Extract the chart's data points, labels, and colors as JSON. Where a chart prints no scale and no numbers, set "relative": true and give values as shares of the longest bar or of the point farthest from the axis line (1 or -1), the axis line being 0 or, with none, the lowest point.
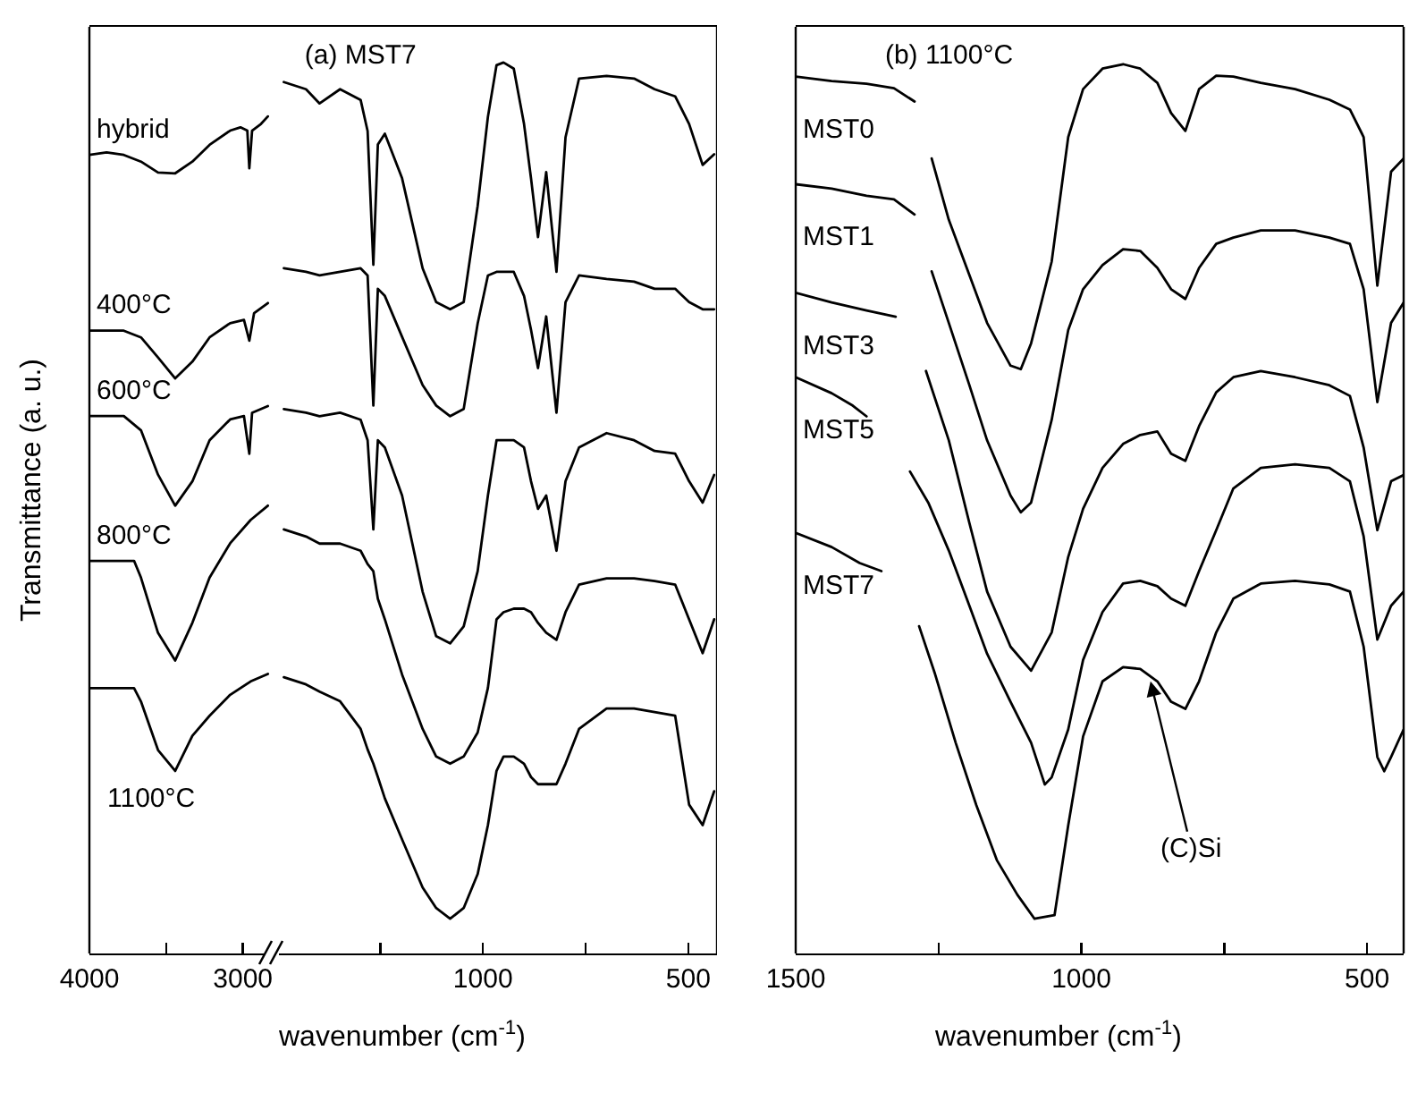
{
  "chart_data": [
    {
      "type": "line",
      "ylabel": "Transmittance (a. u.)",
      "relative": true,
      "xlim": [
        4000,
        2800
      ],
      "xticks": [
        4000,
        {
          "value": 3500,
          "label": null
        },
        3000
      ],
      "series": [
        {
          "name": "hybrid",
          "color": "#000000",
          "x": [
            4000,
            3888,
            3776,
            3664,
            3553,
            3441,
            3329,
            3217,
            3083,
            3016,
            2971,
            2958,
            2940,
            2882,
            2837
          ],
          "values": [
            0.954,
            0.957,
            0.954,
            0.946,
            0.933,
            0.932,
            0.946,
            0.966,
            0.983,
            0.987,
            0.983,
            0.938,
            0.983,
            0.991,
            1
          ]
        },
        {
          "name": "400°C",
          "color": "#000000",
          "x": [
            4000,
            3776,
            3664,
            3553,
            3441,
            3329,
            3217,
            3083,
            2993,
            2958,
            2927,
            2837
          ],
          "values": [
            0.744,
            0.744,
            0.736,
            0.712,
            0.687,
            0.707,
            0.736,
            0.753,
            0.757,
            0.732,
            0.765,
            0.777
          ]
        },
        {
          "name": "600°C",
          "color": "#000000",
          "x": [
            4000,
            3776,
            3664,
            3553,
            3441,
            3329,
            3217,
            3083,
            2993,
            2958,
            2940,
            2837
          ],
          "values": [
            0.642,
            0.642,
            0.625,
            0.572,
            0.535,
            0.564,
            0.613,
            0.638,
            0.642,
            0.597,
            0.646,
            0.654
          ]
        },
        {
          "name": "800°C",
          "color": "#000000",
          "x": [
            4000,
            3709,
            3664,
            3553,
            3441,
            3329,
            3217,
            3083,
            2949,
            2837
          ],
          "values": [
            0.469,
            0.469,
            0.449,
            0.383,
            0.35,
            0.395,
            0.449,
            0.49,
            0.518,
            0.535
          ]
        },
        {
          "name": "1100°C",
          "color": "#000000",
          "x": [
            4000,
            3709,
            3664,
            3553,
            3441,
            3329,
            3217,
            3083,
            2949,
            2837
          ],
          "values": [
            0.317,
            0.317,
            0.301,
            0.243,
            0.218,
            0.26,
            0.284,
            0.309,
            0.325,
            0.334
          ]
        }
      ]
    },
    {
      "type": "line",
      "title": "(a) MST7",
      "xlabel": "wavenumber (cm$^{-1}$)",
      "relative": true,
      "xlim": [
        1510,
        430
      ],
      "xticks": [
        {
          "value": 1250,
          "label": null
        },
        1000,
        {
          "value": 750,
          "label": null
        },
        500
      ],
      "x": [
        1485,
        1431,
        1398,
        1348,
        1298,
        1281,
        1267,
        1256,
        1239,
        1197,
        1147,
        1114,
        1080,
        1047,
        1013,
        988,
        967,
        950,
        925,
        900,
        883,
        866,
        846,
        821,
        799,
        766,
        699,
        632,
        582,
        532,
        498,
        465,
        437
      ],
      "series": [
        {
          "color": "#000000",
          "values": [
            0.978,
            0.97,
            0.954,
            0.97,
            0.958,
            0.923,
            0.773,
            0.908,
            0.92,
            0.87,
            0.769,
            0.731,
            0.723,
            0.731,
            0.839,
            0.939,
            0.997,
            1,
            0.993,
            0.931,
            0.87,
            0.804,
            0.877,
            0.765,
            0.916,
            0.982,
            0.985,
            0.982,
            0.97,
            0.962,
            0.931,
            0.885,
            0.897
          ]
        },
        {
          "color": "#000000",
          "values": [
            0.769,
            0.765,
            0.761,
            0.765,
            0.769,
            0.761,
            0.615,
            0.746,
            0.738,
            0.692,
            0.638,
            0.615,
            0.603,
            0.611,
            0.707,
            0.761,
            0.765,
            0.765,
            0.765,
            0.738,
            0.7,
            0.657,
            0.715,
            0.607,
            0.731,
            0.761,
            0.757,
            0.754,
            0.746,
            0.746,
            0.731,
            0.723,
            0.723
          ]
        },
        {
          "color": "#000000",
          "values": [
            0.611,
            0.607,
            0.603,
            0.607,
            0.599,
            0.576,
            0.476,
            0.576,
            0.568,
            0.514,
            0.406,
            0.356,
            0.348,
            0.367,
            0.429,
            0.514,
            0.576,
            0.576,
            0.576,
            0.568,
            0.53,
            0.499,
            0.514,
            0.452,
            0.53,
            0.568,
            0.584,
            0.576,
            0.564,
            0.561,
            0.53,
            0.506,
            0.537
          ]
        },
        {
          "color": "#000000",
          "values": [
            0.476,
            0.468,
            0.46,
            0.46,
            0.452,
            0.437,
            0.429,
            0.398,
            0.375,
            0.313,
            0.252,
            0.221,
            0.213,
            0.221,
            0.248,
            0.298,
            0.375,
            0.383,
            0.387,
            0.387,
            0.383,
            0.371,
            0.36,
            0.352,
            0.383,
            0.414,
            0.421,
            0.421,
            0.418,
            0.414,
            0.375,
            0.337,
            0.375
          ]
        },
        {
          "color": "#000000",
          "values": [
            0.31,
            0.302,
            0.294,
            0.283,
            0.252,
            0.229,
            0.213,
            0.198,
            0.174,
            0.128,
            0.074,
            0.051,
            0.039,
            0.051,
            0.089,
            0.144,
            0.205,
            0.221,
            0.221,
            0.213,
            0.198,
            0.19,
            0.19,
            0.19,
            0.213,
            0.252,
            0.275,
            0.275,
            0.271,
            0.267,
            0.167,
            0.144,
            0.182
          ]
        }
      ]
    },
    {
      "type": "line",
      "title": "(b) 1100°C",
      "xlabel": "wavenumber (cm$^{-1}$)",
      "relative": true,
      "xlim": [
        1500,
        436
      ],
      "xticks": [
        1500,
        {
          "value": 1250,
          "label": null
        },
        1000,
        {
          "value": 750,
          "label": null
        },
        500
      ],
      "annotations": [
        {
          "text": "(C)Si",
          "x": 879,
          "y": 0.306
        }
      ],
      "series": [
        {
          "name": "MST0",
          "color": "#000000",
          "x": [
            1500,
            1437,
            1376,
            1328,
            1292,
            1277,
            1262,
            1232,
            1196,
            1165,
            1124,
            1106,
            1088,
            1052,
            1023,
            997,
            963,
            927,
            897,
            867,
            843,
            818,
            794,
            764,
            734,
            686,
            626,
            566,
            530,
            506,
            482,
            458,
            436
          ],
          "values": [
            0.986,
            0.981,
            0.978,
            0.973,
            0.958,
            null,
            0.894,
            0.825,
            0.763,
            0.709,
            0.661,
            0.657,
            0.686,
            0.778,
            0.918,
            0.972,
            0.995,
            1,
            0.995,
            0.979,
            0.945,
            0.925,
            0.972,
            0.987,
            0.986,
            0.979,
            0.972,
            0.96,
            0.949,
            0.918,
            0.751,
            0.879,
            0.894
          ]
        },
        {
          "name": "MST1",
          "color": "#000000",
          "x": [
            1500,
            1437,
            1376,
            1328,
            1292,
            1277,
            1262,
            1232,
            1196,
            1165,
            1124,
            1106,
            1088,
            1052,
            1023,
            997,
            963,
            927,
            897,
            867,
            843,
            818,
            794,
            764,
            734,
            686,
            626,
            566,
            530,
            506,
            482,
            458,
            436
          ],
          "values": [
            0.865,
            0.86,
            0.852,
            0.848,
            0.831,
            null,
            0.767,
            0.709,
            0.639,
            0.577,
            0.515,
            0.496,
            0.507,
            0.6,
            0.701,
            0.747,
            0.774,
            0.792,
            0.79,
            0.771,
            0.747,
            0.736,
            0.771,
            0.798,
            0.805,
            0.813,
            0.813,
            0.805,
            0.798,
            0.747,
            0.62,
            0.709,
            0.732
          ]
        },
        {
          "name": "MST3",
          "color": "#000000",
          "x": [
            1500,
            1437,
            1376,
            1325,
            1300,
            1272,
            1232,
            1196,
            1165,
            1124,
            1088,
            1052,
            1023,
            997,
            963,
            927,
            897,
            867,
            843,
            818,
            794,
            764,
            734,
            686,
            626,
            566,
            530,
            506,
            482,
            458,
            436
          ],
          "values": [
            0.743,
            0.732,
            0.723,
            0.716,
            null,
            0.655,
            0.577,
            0.484,
            0.407,
            0.345,
            0.318,
            0.361,
            0.446,
            0.5,
            0.546,
            0.573,
            0.583,
            0.587,
            0.562,
            0.554,
            0.593,
            0.631,
            0.648,
            0.655,
            0.648,
            0.639,
            0.627,
            0.569,
            0.476,
            0.531,
            0.538
          ]
        },
        {
          "name": "MST5",
          "color": "#000000",
          "x": [
            1500,
            1437,
            1400,
            1376,
            1330,
            1300,
            1268,
            1232,
            1196,
            1165,
            1124,
            1088,
            1064,
            1052,
            1023,
            997,
            963,
            927,
            897,
            867,
            843,
            818,
            794,
            764,
            734,
            686,
            626,
            566,
            530,
            506,
            482,
            458,
            436
          ],
          "values": [
            0.648,
            0.63,
            0.616,
            0.604,
            null,
            0.542,
            0.507,
            0.453,
            0.391,
            0.337,
            0.283,
            0.237,
            0.19,
            0.198,
            0.252,
            0.33,
            0.384,
            0.416,
            0.419,
            0.413,
            0.399,
            0.391,
            0.43,
            0.476,
            0.523,
            0.546,
            0.55,
            0.546,
            0.531,
            0.469,
            0.353,
            0.391,
            0.407
          ]
        },
        {
          "name": "MST7",
          "color": "#000000",
          "x": [
            1500,
            1437,
            1388,
            1350,
            1317,
            1284,
            1256,
            1220,
            1184,
            1148,
            1112,
            1082,
            1047,
            1023,
            997,
            963,
            927,
            897,
            867,
            843,
            818,
            794,
            764,
            734,
            686,
            626,
            566,
            530,
            506,
            482,
            470,
            458,
            436
          ],
          "values": [
            0.473,
            0.457,
            0.439,
            0.43,
            null,
            0.368,
            0.314,
            0.237,
            0.167,
            0.105,
            0.066,
            0.039,
            0.043,
            0.144,
            0.244,
            0.306,
            0.322,
            0.32,
            0.306,
            0.283,
            0.275,
            0.306,
            0.361,
            0.399,
            0.416,
            0.419,
            0.415,
            0.407,
            0.345,
            0.221,
            0.205,
            0.221,
            0.252
          ]
        }
      ]
    }
  ]
}
